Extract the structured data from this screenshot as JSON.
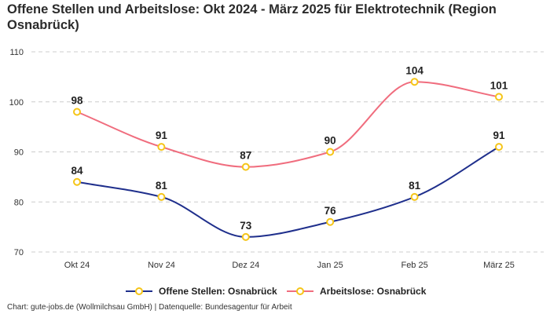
{
  "chart_data": {
    "type": "line",
    "title": "Offene Stellen und Arbeitslose: Okt 2024 - März 2025 für Elektrotechnik (Region Osnabrück)",
    "categories": [
      "Okt 24",
      "Nov 24",
      "Dez 24",
      "Jan 25",
      "Feb 25",
      "März 25"
    ],
    "ylim": [
      70,
      110
    ],
    "yticks": [
      70,
      80,
      90,
      100,
      110
    ],
    "grid": true,
    "legend_position": "bottom",
    "series": [
      {
        "name": "Offene Stellen: Osnabrück",
        "color": "#1f2f8c",
        "values": [
          84,
          81,
          73,
          76,
          81,
          91
        ]
      },
      {
        "name": "Arbeitslose: Osnabrück",
        "color": "#f06d7e",
        "values": [
          98,
          91,
          87,
          90,
          104,
          101
        ]
      }
    ],
    "marker_color": "#f5c518"
  },
  "footer": "Chart: gute-jobs.de (Wollmilchsau GmbH) | Datenquelle: Bundesagentur für Arbeit"
}
